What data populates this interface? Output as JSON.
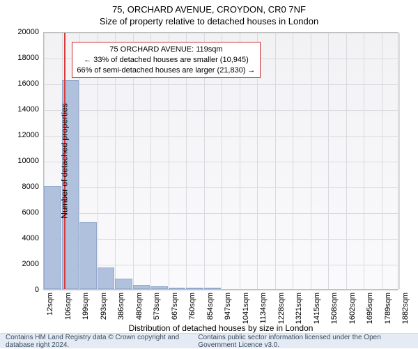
{
  "title_line1": "75, ORCHARD AVENUE, CROYDON, CR0 7NF",
  "title_line2": "Size of property relative to detached houses in London",
  "chart": {
    "type": "histogram",
    "background_gradient": [
      "#f2f2f4",
      "#fafafc"
    ],
    "border_color": "#bcbcbc",
    "grid_color": "#d9dadd",
    "bar_fill": "#b0c1de",
    "bar_border": "#92a8cc",
    "ylabel": "Number of detached properties",
    "xlabel": "Distribution of detached houses by size in London",
    "ylim": [
      0,
      20000
    ],
    "yticks": [
      0,
      2000,
      4000,
      6000,
      8000,
      10000,
      12000,
      14000,
      16000,
      18000,
      20000
    ],
    "xlim_sqm": [
      12,
      1882
    ],
    "xticks_sqm": [
      12,
      106,
      199,
      293,
      386,
      480,
      573,
      667,
      760,
      854,
      947,
      1041,
      1134,
      1228,
      1321,
      1415,
      1508,
      1602,
      1695,
      1789,
      1882
    ],
    "xtick_suffix": "sqm",
    "bars": [
      {
        "x0": 12,
        "x1": 106,
        "value": 8000
      },
      {
        "x0": 106,
        "x1": 199,
        "value": 16200
      },
      {
        "x0": 199,
        "x1": 293,
        "value": 5200
      },
      {
        "x0": 293,
        "x1": 386,
        "value": 1700
      },
      {
        "x0": 386,
        "x1": 480,
        "value": 800
      },
      {
        "x0": 480,
        "x1": 573,
        "value": 350
      },
      {
        "x0": 573,
        "x1": 667,
        "value": 230
      },
      {
        "x0": 667,
        "x1": 760,
        "value": 130
      },
      {
        "x0": 760,
        "x1": 854,
        "value": 100
      },
      {
        "x0": 854,
        "x1": 947,
        "value": 60
      }
    ],
    "reference_line": {
      "x_sqm": 119,
      "color": "#d73a3a"
    },
    "annotation": {
      "border_color": "#cc2b2b",
      "lines": [
        "75 ORCHARD AVENUE: 119sqm",
        "← 33% of detached houses are smaller (10,945)",
        "66% of semi-detached houses are larger (21,830) →"
      ],
      "left_sqm": 160,
      "top_value": 19300
    },
    "label_fontsize": 12,
    "tick_fontsize": 11
  },
  "footer": {
    "left": "Contains HM Land Registry data © Crown copyright and database right 2024.",
    "right": "Contains public sector information licensed under the Open Government Licence v3.0.",
    "bg": "#e4ebf4",
    "color": "#3a4a5f"
  }
}
